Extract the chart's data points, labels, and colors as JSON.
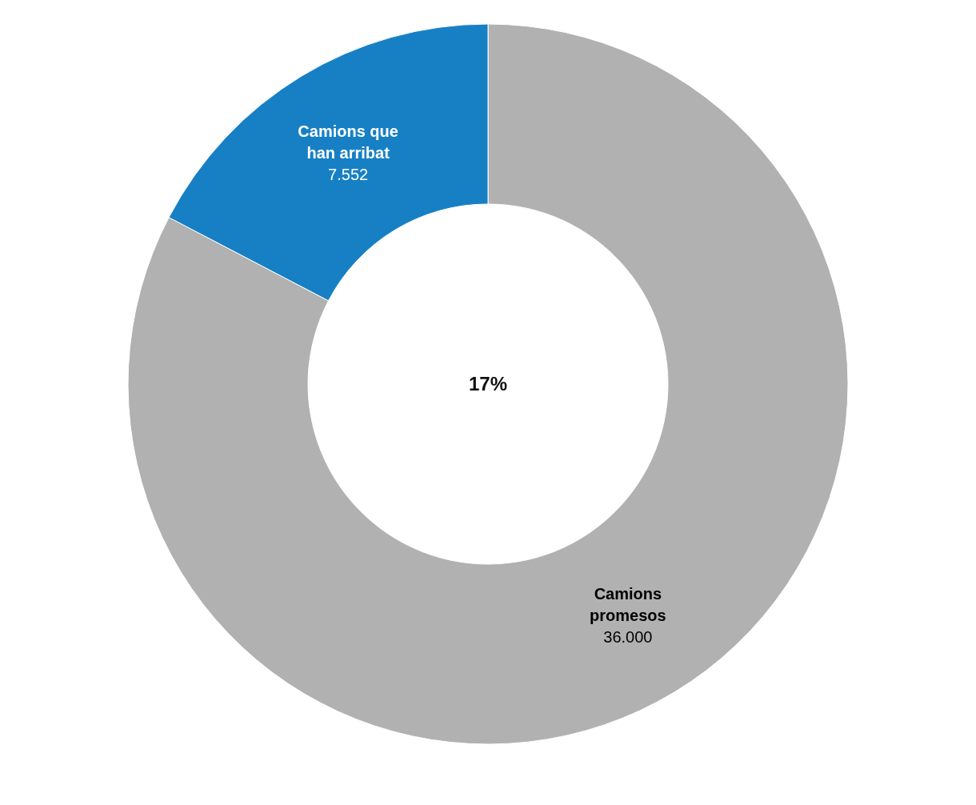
{
  "chart_data": {
    "type": "donut",
    "categories": [
      [
        "Camions",
        "promesos"
      ],
      [
        "Camions que",
        "han arribat"
      ]
    ],
    "values": [
      36000,
      7552
    ],
    "value_labels": [
      "36.000",
      "7.552"
    ],
    "colors": [
      "#b1b1b1",
      "#1780c4"
    ],
    "annotations": [
      "17%"
    ]
  }
}
